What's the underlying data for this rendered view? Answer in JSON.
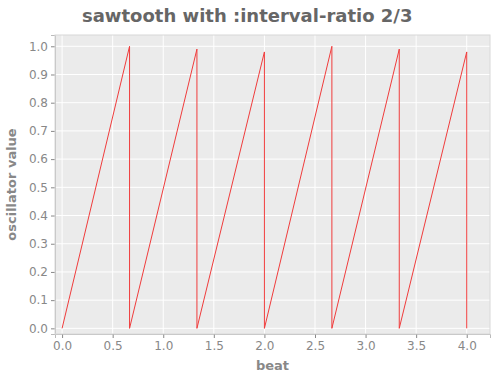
{
  "chart_data": {
    "type": "line",
    "title": "sawtooth with :interval-ratio 2/3",
    "x_label": "beat",
    "y_label": "oscillator value",
    "x": [
      0,
      0.667,
      0.667,
      1.333,
      1.333,
      2.0,
      2.0,
      2.667,
      2.667,
      3.333,
      3.333,
      4.0,
      4.0
    ],
    "values": [
      0,
      1.0,
      0,
      0.99,
      0,
      0.98,
      0,
      1.0,
      0,
      0.99,
      0,
      0.98,
      0
    ],
    "color": "#f03c3c",
    "xlim": [
      -0.07,
      4.23
    ],
    "ylim": [
      -0.02,
      1.04
    ],
    "xticks": [
      {
        "value": 0,
        "label": "0.0"
      },
      {
        "value": 0.5,
        "label": "0.5"
      },
      {
        "value": 1,
        "label": "1.0"
      },
      {
        "value": 1.5,
        "label": "1.5"
      },
      {
        "value": 2,
        "label": "2.0"
      },
      {
        "value": 2.5,
        "label": "2.5"
      },
      {
        "value": 3,
        "label": "3.0"
      },
      {
        "value": 3.5,
        "label": "3.5"
      },
      {
        "value": 4,
        "label": "4.0"
      }
    ],
    "yticks": [
      {
        "value": 0,
        "label": "0.0"
      },
      {
        "value": 0.1,
        "label": "0.1"
      },
      {
        "value": 0.2,
        "label": "0.2"
      },
      {
        "value": 0.3,
        "label": "0.3"
      },
      {
        "value": 0.4,
        "label": "0.4"
      },
      {
        "value": 0.5,
        "label": "0.5"
      },
      {
        "value": 0.6,
        "label": "0.6"
      },
      {
        "value": 0.7,
        "label": "0.7"
      },
      {
        "value": 0.8,
        "label": "0.8"
      },
      {
        "value": 0.9,
        "label": "0.9"
      },
      {
        "value": 1,
        "label": "1.0"
      }
    ],
    "grid": true
  }
}
